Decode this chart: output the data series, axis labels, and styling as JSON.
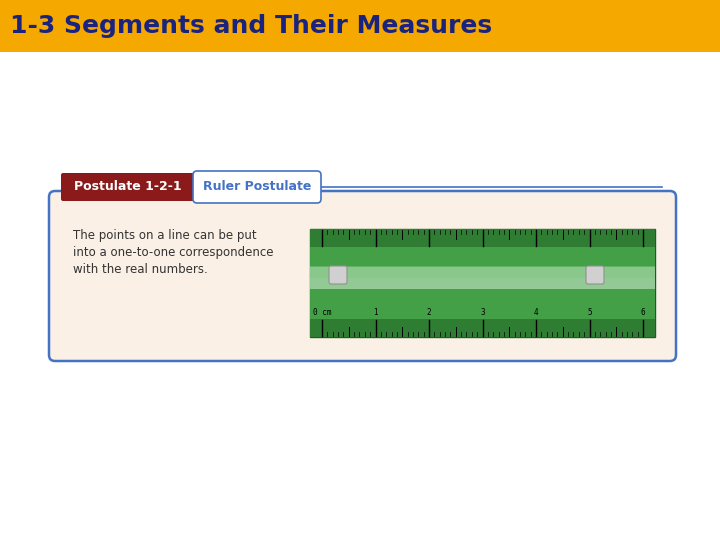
{
  "title": "1-3 Segments and Their Measures",
  "title_bg_color": "#F5A800",
  "title_text_color": "#1A237E",
  "slide_bg_color": "#FFFFFF",
  "card_bg_color": "#FAF0E6",
  "card_border_color": "#4472C4",
  "postulate_label": "Postulate 1-2-1",
  "postulate_label_bg": "#8B1A1A",
  "postulate_label_text": "#FFFFFF",
  "postulate_name": "Ruler Postulate",
  "postulate_name_bg": "#FFFFFF",
  "postulate_name_border": "#4472C4",
  "postulate_name_text": "#4472C4",
  "body_text_lines": [
    "The points on a line can be put",
    "into a one-to-one correspondence",
    "with the real numbers."
  ],
  "body_text_color": "#333333",
  "ruler_tick_labels": [
    "0 cm",
    "1",
    "2",
    "3",
    "4",
    "5",
    "6"
  ],
  "ruler_green_dark": "#2E7D32",
  "ruler_green_mid": "#43A047",
  "ruler_green_light": "#81C784",
  "ruler_highlight": "#C8E6C9"
}
